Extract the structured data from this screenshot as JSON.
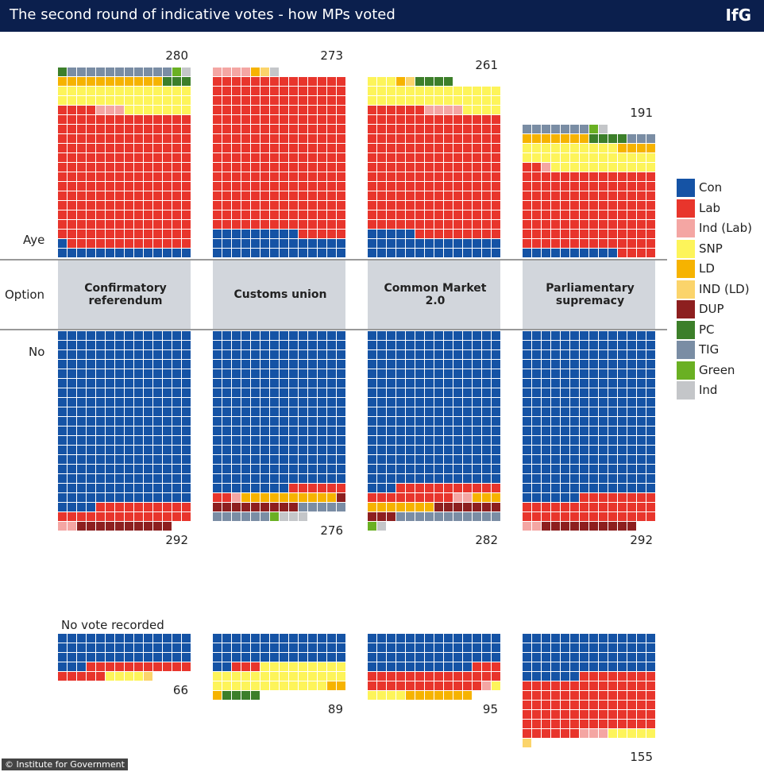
{
  "chart_data": {
    "type": "waffle",
    "title": "The second round of indicative votes - how MPs voted",
    "logo": "IfG",
    "source": "© Institute for Government",
    "row_labels": {
      "aye": "Aye",
      "option": "Option",
      "no": "No",
      "no_vote": "No vote recorded"
    },
    "series": [
      {
        "name": "Con",
        "color": "#1553a5"
      },
      {
        "name": "Lab",
        "color": "#e8352c"
      },
      {
        "name": "Ind (Lab)",
        "color": "#f4a6a3"
      },
      {
        "name": "SNP",
        "color": "#fdf45a"
      },
      {
        "name": "LD",
        "color": "#f6b300"
      },
      {
        "name": "IND (LD)",
        "color": "#fbd46b"
      },
      {
        "name": "DUP",
        "color": "#8d1f1f"
      },
      {
        "name": "PC",
        "color": "#3c7f2a"
      },
      {
        "name": "TIG",
        "color": "#7a8da4"
      },
      {
        "name": "Green",
        "color": "#6ab023"
      },
      {
        "name": "Ind",
        "color": "#c4c6c9"
      }
    ],
    "options": [
      {
        "label": "Confirmatory referendum",
        "aye": {
          "total": 280,
          "values": [
            15,
            199,
            3,
            35,
            11,
            0,
            0,
            4,
            11,
            1,
            1
          ]
        },
        "no": {
          "total": 292,
          "values": [
            256,
            24,
            2,
            0,
            0,
            0,
            10,
            0,
            0,
            0,
            0
          ]
        },
        "no_vote": {
          "total": 66,
          "values": [
            45,
            16,
            0,
            4,
            0,
            1,
            0,
            0,
            0,
            0,
            0
          ]
        }
      },
      {
        "label": "Customs union",
        "aye": {
          "total": 273,
          "values": [
            37,
            229,
            4,
            0,
            1,
            1,
            0,
            0,
            0,
            0,
            1
          ]
        },
        "no": {
          "total": 276,
          "values": [
            232,
            8,
            1,
            0,
            10,
            0,
            10,
            0,
            11,
            1,
            3
          ]
        },
        "no_vote": {
          "total": 89,
          "values": [
            44,
            3,
            0,
            35,
            3,
            0,
            0,
            4,
            0,
            0,
            0
          ]
        }
      },
      {
        "label": "Common Market 2.0",
        "aye": {
          "total": 261,
          "values": [
            33,
            183,
            4,
            35,
            1,
            1,
            0,
            4,
            0,
            0,
            0
          ]
        },
        "no": {
          "total": 282,
          "values": [
            227,
            20,
            2,
            0,
            10,
            0,
            10,
            0,
            11,
            1,
            1
          ]
        },
        "no_vote": {
          "total": 95,
          "values": [
            53,
            29,
            1,
            5,
            7,
            0,
            0,
            0,
            0,
            0,
            0
          ]
        }
      },
      {
        "label": "Parliamentary supremacy",
        "aye": {
          "total": 191,
          "values": [
            10,
            118,
            1,
            35,
            11,
            0,
            0,
            4,
            10,
            1,
            1
          ]
        },
        "no": {
          "total": 292,
          "values": [
            244,
            36,
            2,
            0,
            0,
            0,
            10,
            0,
            0,
            0,
            0
          ]
        },
        "no_vote": {
          "total": 155,
          "values": [
            62,
            84,
            3,
            5,
            0,
            1,
            0,
            0,
            0,
            0,
            0
          ]
        }
      }
    ]
  }
}
